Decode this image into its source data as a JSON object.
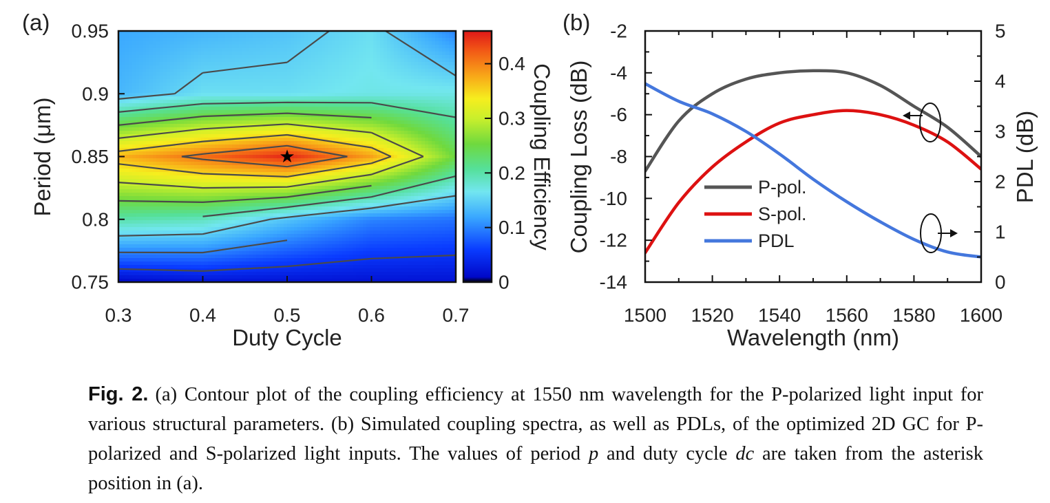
{
  "caption": {
    "label": "Fig. 2.",
    "seg1": "(a) Contour plot of the coupling efficiency at 1550 nm wavelength for the P-polarized light input for various structural parameters. (b) Simulated coupling spectra, as well as PDLs, of the optimized 2D GC for P-polarized and S-polarized light inputs. The values of period ",
    "var_p": "p",
    "seg2": " and duty cycle ",
    "var_dc": "dc",
    "seg3": " are taken from the asterisk position in (a)."
  },
  "chart_data": [
    {
      "panel_label": "(a)",
      "type": "heatmap",
      "xlabel": "Duty Cycle",
      "ylabel": "Period (μm)",
      "colorbar_label": "Coupling Efficiency",
      "x_ticks": [
        "0.3",
        "0.4",
        "0.5",
        "0.6",
        "0.7"
      ],
      "y_ticks": [
        "0.75",
        "0.8",
        "0.85",
        "0.9",
        "0.95"
      ],
      "colorbar_ticks": [
        "0",
        "0.1",
        "0.2",
        "0.3",
        "0.4"
      ],
      "xlim": [
        0.3,
        0.7
      ],
      "ylim": [
        0.75,
        0.95
      ],
      "clim": [
        0,
        0.46
      ],
      "x": [
        0.3,
        0.4,
        0.5,
        0.6,
        0.7
      ],
      "y": [
        0.75,
        0.8,
        0.85,
        0.9,
        0.95
      ],
      "z": [
        [
          0.01,
          0.02,
          0.02,
          0.02,
          0.02
        ],
        [
          0.2,
          0.19,
          0.14,
          0.1,
          0.09
        ],
        [
          0.37,
          0.41,
          0.45,
          0.38,
          0.25
        ],
        [
          0.13,
          0.16,
          0.16,
          0.17,
          0.17
        ],
        [
          0.12,
          0.13,
          0.14,
          0.16,
          0.1
        ]
      ],
      "contour_levels": [
        0.05,
        0.1,
        0.15,
        0.2,
        0.25,
        0.3,
        0.35,
        0.4
      ],
      "marker": {
        "x": 0.5,
        "y": 0.85,
        "symbol": "★"
      }
    },
    {
      "panel_label": "(b)",
      "type": "line",
      "xlabel": "Wavelength (nm)",
      "ylabel": "Coupling Loss (dB)",
      "y2label": "PDL (dB)",
      "x_ticks": [
        "1500",
        "1520",
        "1540",
        "1560",
        "1580",
        "1600"
      ],
      "y_ticks": [
        "-2",
        "-4",
        "-6",
        "-8",
        "-10",
        "-12",
        "-14"
      ],
      "y2_ticks": [
        "5",
        "4",
        "3",
        "2",
        "1",
        "0"
      ],
      "xlim": [
        1500,
        1600
      ],
      "ylim": [
        -14,
        -2
      ],
      "y2lim": [
        0,
        5
      ],
      "x": [
        1500,
        1510,
        1520,
        1530,
        1540,
        1550,
        1560,
        1570,
        1580,
        1590,
        1600
      ],
      "series": [
        {
          "name": "P-pol.",
          "color": "#555555",
          "axis": "left",
          "values": [
            -8.7,
            -6.3,
            -5.0,
            -4.3,
            -4.0,
            -3.9,
            -4.0,
            -4.6,
            -5.6,
            -6.6,
            -8.0
          ]
        },
        {
          "name": "S-pol.",
          "color": "#dd1111",
          "axis": "left",
          "values": [
            -12.6,
            -10.2,
            -8.5,
            -7.3,
            -6.4,
            -6.0,
            -5.8,
            -6.0,
            -6.5,
            -7.3,
            -8.6
          ]
        },
        {
          "name": "PDL",
          "color": "#4477dd",
          "axis": "right",
          "values": [
            3.95,
            3.6,
            3.35,
            3.0,
            2.55,
            2.05,
            1.6,
            1.2,
            0.85,
            0.6,
            0.5
          ]
        }
      ],
      "legend_position": "bottom-left",
      "annotations": [
        "P/S curves → left axis",
        "PDL → right axis"
      ]
    }
  ]
}
